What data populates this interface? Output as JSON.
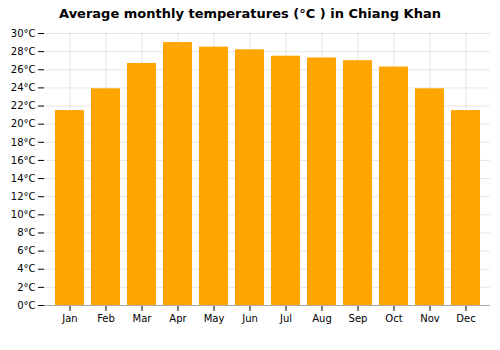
{
  "chart_data": {
    "type": "bar",
    "title": "Average monthly temperatures (°C ) in Chiang Khan",
    "categories": [
      "Jan",
      "Feb",
      "Mar",
      "Apr",
      "May",
      "Jun",
      "Jul",
      "Aug",
      "Sep",
      "Oct",
      "Nov",
      "Dec"
    ],
    "values": [
      21.5,
      23.9,
      26.7,
      29.0,
      28.5,
      28.2,
      27.5,
      27.3,
      27.0,
      26.3,
      23.9,
      21.5
    ],
    "color": "#FFA500",
    "ylim": [
      0,
      30
    ],
    "yticks": [
      {
        "value": 0,
        "label": "0°C"
      },
      {
        "value": 2,
        "label": "2°C"
      },
      {
        "value": 4,
        "label": "4°C"
      },
      {
        "value": 6,
        "label": "6°C"
      },
      {
        "value": 8,
        "label": "8°C"
      },
      {
        "value": 10,
        "label": "10°C"
      },
      {
        "value": 12,
        "label": "12°C"
      },
      {
        "value": 14,
        "label": "14°C"
      },
      {
        "value": 16,
        "label": "16°C"
      },
      {
        "value": 18,
        "label": "18°C"
      },
      {
        "value": 20,
        "label": "20°C"
      },
      {
        "value": 22,
        "label": "22°C"
      },
      {
        "value": 24,
        "label": "24°C"
      },
      {
        "value": 26,
        "label": "26°C"
      },
      {
        "value": 28,
        "label": "28°C"
      },
      {
        "value": 30,
        "label": "30°C"
      }
    ],
    "grid": true
  }
}
